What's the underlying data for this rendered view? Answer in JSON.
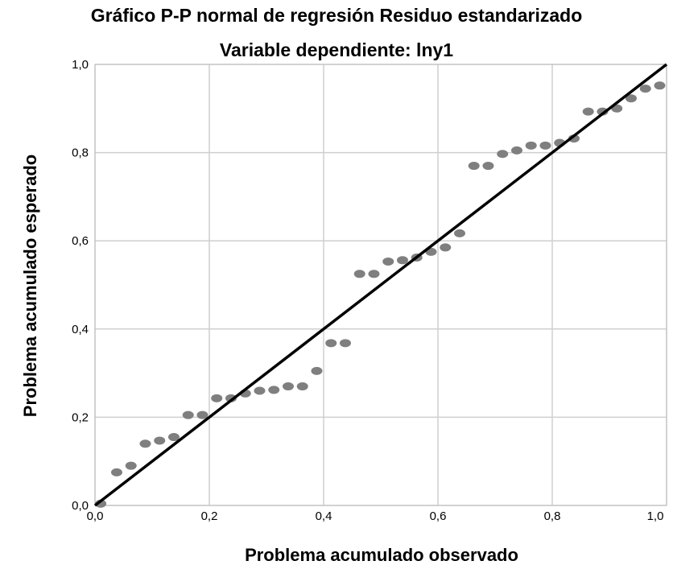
{
  "chart_data": {
    "type": "scatter",
    "title": "Gráfico P-P normal de regresión Residuo estandarizado",
    "subtitle": "Variable dependiente: lny1",
    "xlabel": "Problema acumulado observado",
    "ylabel": "Problema acumulado esperado",
    "xlim": [
      0,
      1
    ],
    "ylim": [
      0,
      1
    ],
    "grid": true,
    "xticks": [
      "0,0",
      "0,2",
      "0,4",
      "0,6",
      "0,8",
      "1,0"
    ],
    "yticks": [
      "0,0",
      "0,2",
      "0,4",
      "0,6",
      "0,8",
      "1,0"
    ],
    "reference_line": {
      "x": [
        0,
        1
      ],
      "y": [
        0,
        1
      ],
      "color": "#000000"
    },
    "point_color": "#7f7f7f",
    "series": [
      {
        "x": [
          0.01,
          0.038,
          0.063,
          0.088,
          0.113,
          0.138,
          0.163,
          0.188,
          0.213,
          0.238,
          0.263,
          0.288,
          0.313,
          0.338,
          0.363,
          0.388,
          0.413,
          0.438,
          0.463,
          0.488,
          0.513,
          0.538,
          0.563,
          0.588,
          0.613,
          0.638,
          0.663,
          0.688,
          0.713,
          0.738,
          0.763,
          0.788,
          0.813,
          0.838,
          0.863,
          0.888,
          0.913,
          0.938,
          0.963,
          0.988
        ],
        "y": [
          0.004,
          0.075,
          0.09,
          0.14,
          0.147,
          0.155,
          0.205,
          0.205,
          0.243,
          0.243,
          0.254,
          0.26,
          0.262,
          0.27,
          0.27,
          0.305,
          0.368,
          0.368,
          0.525,
          0.525,
          0.553,
          0.556,
          0.562,
          0.575,
          0.585,
          0.617,
          0.77,
          0.77,
          0.797,
          0.805,
          0.816,
          0.816,
          0.822,
          0.832,
          0.893,
          0.893,
          0.9,
          0.923,
          0.945,
          0.952
        ]
      }
    ]
  }
}
